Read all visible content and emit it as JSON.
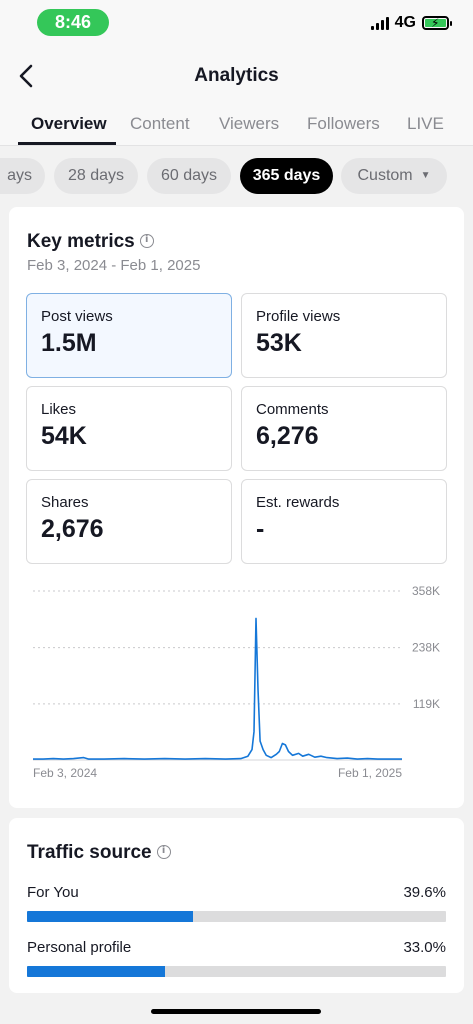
{
  "status_bar": {
    "time": "8:46",
    "network": "4G"
  },
  "header": {
    "title": "Analytics"
  },
  "tabs": [
    {
      "label": "Overview",
      "active": true
    },
    {
      "label": "Content",
      "active": false
    },
    {
      "label": "Viewers",
      "active": false
    },
    {
      "label": "Followers",
      "active": false
    },
    {
      "label": "LIVE",
      "active": false
    }
  ],
  "ranges": [
    {
      "label": "ays",
      "active": false
    },
    {
      "label": "28 days",
      "active": false
    },
    {
      "label": "60 days",
      "active": false
    },
    {
      "label": "365 days",
      "active": true
    },
    {
      "label": "Custom",
      "active": false
    }
  ],
  "key_metrics": {
    "title": "Key metrics",
    "date_range": "Feb 3, 2024 - Feb 1, 2025",
    "metrics": [
      {
        "label": "Post views",
        "value": "1.5M",
        "selected": true
      },
      {
        "label": "Profile views",
        "value": "53K",
        "selected": false
      },
      {
        "label": "Likes",
        "value": "54K",
        "selected": false
      },
      {
        "label": "Comments",
        "value": "6,276",
        "selected": false
      },
      {
        "label": "Shares",
        "value": "2,676",
        "selected": false
      },
      {
        "label": "Est. rewards",
        "value": "-",
        "selected": false
      }
    ]
  },
  "chart_data": {
    "type": "line",
    "x_start_label": "Feb 3, 2024",
    "x_end_label": "Feb 1, 2025",
    "y_ticks": [
      {
        "value": 119,
        "label": "119K"
      },
      {
        "value": 238,
        "label": "238K"
      },
      {
        "value": 358,
        "label": "358K"
      }
    ],
    "ylim": [
      0,
      358
    ],
    "grid": true,
    "series": [
      {
        "color": "#1577d8",
        "points": [
          [
            0,
            2
          ],
          [
            10,
            2
          ],
          [
            20,
            3
          ],
          [
            30,
            2
          ],
          [
            40,
            3
          ],
          [
            50,
            5
          ],
          [
            55,
            2
          ],
          [
            70,
            2
          ],
          [
            90,
            3
          ],
          [
            110,
            2
          ],
          [
            130,
            3
          ],
          [
            150,
            2
          ],
          [
            170,
            3
          ],
          [
            190,
            2
          ],
          [
            205,
            3
          ],
          [
            212,
            8
          ],
          [
            216,
            22
          ],
          [
            218,
            60
          ],
          [
            220,
            300
          ],
          [
            222,
            150
          ],
          [
            224,
            40
          ],
          [
            227,
            22
          ],
          [
            230,
            10
          ],
          [
            235,
            5
          ],
          [
            240,
            12
          ],
          [
            243,
            18
          ],
          [
            246,
            35
          ],
          [
            249,
            32
          ],
          [
            252,
            18
          ],
          [
            256,
            10
          ],
          [
            262,
            14
          ],
          [
            266,
            8
          ],
          [
            272,
            12
          ],
          [
            278,
            6
          ],
          [
            284,
            8
          ],
          [
            290,
            5
          ],
          [
            300,
            3
          ],
          [
            310,
            4
          ],
          [
            320,
            2
          ],
          [
            330,
            3
          ],
          [
            340,
            2
          ],
          [
            350,
            2
          ],
          [
            364,
            2
          ]
        ]
      }
    ]
  },
  "traffic_source": {
    "title": "Traffic source",
    "rows": [
      {
        "label": "For You",
        "value": "39.6%",
        "fraction": 0.396
      },
      {
        "label": "Personal profile",
        "value": "33.0%",
        "fraction": 0.33
      }
    ]
  },
  "colors": {
    "accent": "#1577d8",
    "time_pill": "#34c759"
  }
}
